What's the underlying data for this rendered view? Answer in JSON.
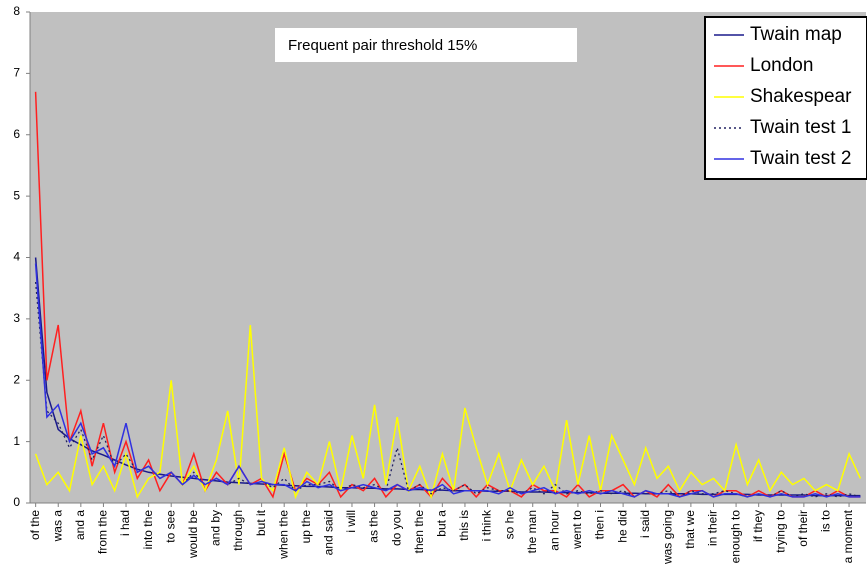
{
  "chart_data": {
    "type": "line",
    "annotation": "Frequent pair threshold 15%",
    "categories": [
      "of the",
      null,
      "was a",
      null,
      "and a",
      null,
      "from the",
      null,
      "i had",
      null,
      "into the",
      null,
      "to see",
      null,
      "would be",
      null,
      "and by",
      null,
      "through",
      null,
      "but it",
      null,
      "when the",
      null,
      "up the",
      null,
      "and said",
      null,
      "i will",
      null,
      "as the",
      null,
      "do you",
      null,
      "then the",
      null,
      "but a",
      null,
      "this is",
      null,
      "i think",
      null,
      "so he",
      null,
      "the man",
      null,
      "an hour",
      null,
      "went to",
      null,
      "then i",
      null,
      "he did",
      null,
      "i said",
      null,
      "was going",
      null,
      "that we",
      null,
      "in their",
      null,
      "enough to",
      null,
      "if they",
      null,
      "trying to",
      null,
      "of their",
      null,
      "is to",
      null,
      "a moment",
      null
    ],
    "ylim": [
      0,
      8
    ],
    "yticks": [
      0,
      1,
      2,
      3,
      4,
      5,
      6,
      7,
      8
    ],
    "grid": false,
    "legend": "upper right",
    "series": [
      {
        "name": "Twain map",
        "color": "#1a1a8c",
        "linestyle": "solid",
        "values": [
          4.0,
          1.8,
          1.2,
          1.05,
          0.95,
          0.85,
          0.78,
          0.7,
          0.62,
          0.55,
          0.5,
          0.47,
          0.44,
          0.42,
          0.4,
          0.38,
          0.36,
          0.34,
          0.33,
          0.32,
          0.31,
          0.3,
          0.29,
          0.28,
          0.27,
          0.27,
          0.26,
          0.25,
          0.25,
          0.24,
          0.24,
          0.23,
          0.23,
          0.22,
          0.22,
          0.21,
          0.21,
          0.2,
          0.2,
          0.2,
          0.19,
          0.19,
          0.19,
          0.18,
          0.18,
          0.18,
          0.17,
          0.17,
          0.17,
          0.17,
          0.16,
          0.16,
          0.16,
          0.16,
          0.15,
          0.15,
          0.15,
          0.15,
          0.15,
          0.14,
          0.14,
          0.14,
          0.14,
          0.14,
          0.13,
          0.13,
          0.13,
          0.13,
          0.13,
          0.12,
          0.12,
          0.12,
          0.12,
          0.12
        ]
      },
      {
        "name": "London",
        "color": "#ff2020",
        "linestyle": "solid",
        "values": [
          6.7,
          2.0,
          2.9,
          1.0,
          1.5,
          0.6,
          1.3,
          0.5,
          1.0,
          0.4,
          0.7,
          0.2,
          0.5,
          0.3,
          0.8,
          0.2,
          0.5,
          0.3,
          0.6,
          0.3,
          0.4,
          0.1,
          0.8,
          0.2,
          0.4,
          0.3,
          0.5,
          0.1,
          0.3,
          0.2,
          0.4,
          0.1,
          0.3,
          0.2,
          0.3,
          0.1,
          0.4,
          0.2,
          0.3,
          0.1,
          0.3,
          0.2,
          0.2,
          0.1,
          0.3,
          0.2,
          0.2,
          0.1,
          0.3,
          0.1,
          0.2,
          0.2,
          0.3,
          0.1,
          0.2,
          0.1,
          0.3,
          0.1,
          0.2,
          0.2,
          0.1,
          0.2,
          0.2,
          0.1,
          0.2,
          0.1,
          0.2,
          0.1,
          0.1,
          0.2,
          0.1,
          0.2,
          0.1,
          0.1
        ]
      },
      {
        "name": "Shakespear",
        "color": "#ffff00",
        "linestyle": "solid",
        "values": [
          0.8,
          0.3,
          0.5,
          0.2,
          1.1,
          0.3,
          0.6,
          0.2,
          0.8,
          0.1,
          0.4,
          0.5,
          2.0,
          0.3,
          0.6,
          0.2,
          0.7,
          1.5,
          0.3,
          2.9,
          0.4,
          0.2,
          0.9,
          0.1,
          0.5,
          0.3,
          1.0,
          0.2,
          1.1,
          0.4,
          1.6,
          0.3,
          1.4,
          0.2,
          0.6,
          0.1,
          0.8,
          0.2,
          1.55,
          0.9,
          0.3,
          0.8,
          0.2,
          0.7,
          0.3,
          0.6,
          0.2,
          1.35,
          0.3,
          1.1,
          0.2,
          1.1,
          0.7,
          0.3,
          0.9,
          0.4,
          0.6,
          0.2,
          0.5,
          0.3,
          0.4,
          0.2,
          0.95,
          0.3,
          0.7,
          0.2,
          0.5,
          0.3,
          0.4,
          0.2,
          0.3,
          0.2,
          0.8,
          0.4
        ]
      },
      {
        "name": "Twain test 1",
        "color": "#202060",
        "linestyle": "dotted",
        "values": [
          3.6,
          1.5,
          1.3,
          0.9,
          1.2,
          0.7,
          1.1,
          0.6,
          0.8,
          0.5,
          0.6,
          0.4,
          0.5,
          0.3,
          0.5,
          0.3,
          0.4,
          0.3,
          0.4,
          0.3,
          0.35,
          0.25,
          0.4,
          0.2,
          0.3,
          0.3,
          0.35,
          0.2,
          0.3,
          0.25,
          0.3,
          0.2,
          0.9,
          0.2,
          0.3,
          0.15,
          0.25,
          0.2,
          0.3,
          0.15,
          0.25,
          0.2,
          0.2,
          0.15,
          0.25,
          0.15,
          0.3,
          0.15,
          0.2,
          0.15,
          0.2,
          0.15,
          0.2,
          0.1,
          0.2,
          0.15,
          0.2,
          0.1,
          0.2,
          0.15,
          0.15,
          0.2,
          0.15,
          0.1,
          0.15,
          0.1,
          0.2,
          0.1,
          0.15,
          0.1,
          0.15,
          0.1,
          0.15,
          0.1
        ]
      },
      {
        "name": "Twain test 2",
        "color": "#3030e0",
        "linestyle": "solid",
        "values": [
          3.9,
          1.4,
          1.6,
          1.0,
          1.3,
          0.8,
          0.9,
          0.6,
          1.3,
          0.5,
          0.6,
          0.4,
          0.5,
          0.3,
          0.45,
          0.3,
          0.4,
          0.3,
          0.6,
          0.3,
          0.35,
          0.3,
          0.3,
          0.2,
          0.35,
          0.25,
          0.3,
          0.2,
          0.25,
          0.3,
          0.25,
          0.2,
          0.3,
          0.2,
          0.25,
          0.2,
          0.3,
          0.15,
          0.2,
          0.2,
          0.2,
          0.15,
          0.25,
          0.15,
          0.2,
          0.25,
          0.15,
          0.2,
          0.15,
          0.2,
          0.15,
          0.2,
          0.15,
          0.1,
          0.2,
          0.15,
          0.15,
          0.1,
          0.15,
          0.2,
          0.1,
          0.15,
          0.15,
          0.1,
          0.15,
          0.1,
          0.15,
          0.1,
          0.1,
          0.15,
          0.1,
          0.15,
          0.1,
          0.1
        ]
      }
    ]
  }
}
